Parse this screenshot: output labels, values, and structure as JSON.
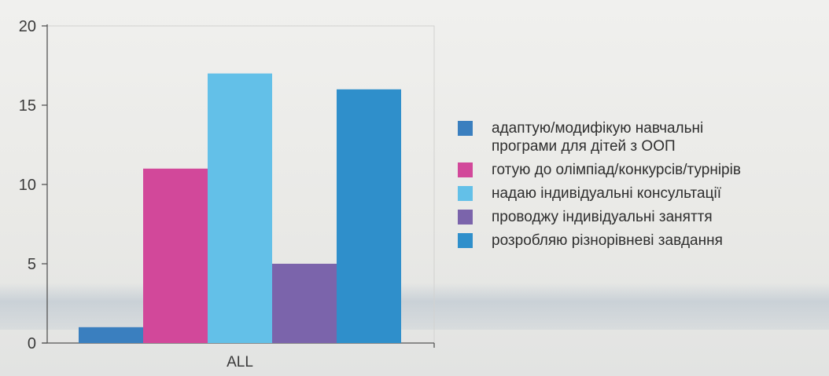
{
  "chart_data": {
    "type": "bar",
    "categories": [
      "ALL"
    ],
    "series": [
      {
        "name": "адаптую/модифікую навчальні програми для дітей з ООП",
        "values": [
          1
        ],
        "color": "#3a7fbf"
      },
      {
        "name": "готую до олімпіад/конкурсів/турнірів",
        "values": [
          11
        ],
        "color": "#d2489a"
      },
      {
        "name": "надаю індивідуальні консультації",
        "values": [
          17
        ],
        "color": "#63c0e8"
      },
      {
        "name": "проводжу індивідуальні заняття",
        "values": [
          5
        ],
        "color": "#7b64ab"
      },
      {
        "name": "розробляю різнорівневі завдання",
        "values": [
          16
        ],
        "color": "#2f8fcb"
      }
    ],
    "y_ticks": [
      "0",
      "5",
      "10",
      "15",
      "20"
    ],
    "ylim": [
      0,
      20
    ],
    "title": "",
    "xlabel": "",
    "ylabel": "",
    "grid": false,
    "legend_position": "right"
  },
  "legend": {
    "items": [
      {
        "line1": "адаптую/модифікую навчальні",
        "line2": "програми для дітей з ООП",
        "color": "#3a7fbf"
      },
      {
        "line1": "готую до олімпіад/конкурсів/турнірів",
        "line2": "",
        "color": "#d2489a"
      },
      {
        "line1": "надаю індивідуальні консультації",
        "line2": "",
        "color": "#63c0e8"
      },
      {
        "line1": "проводжу індивідуальні заняття",
        "line2": "",
        "color": "#7b64ab"
      },
      {
        "line1": "розробляю різнорівневі завдання",
        "line2": "",
        "color": "#2f8fcb"
      }
    ]
  }
}
